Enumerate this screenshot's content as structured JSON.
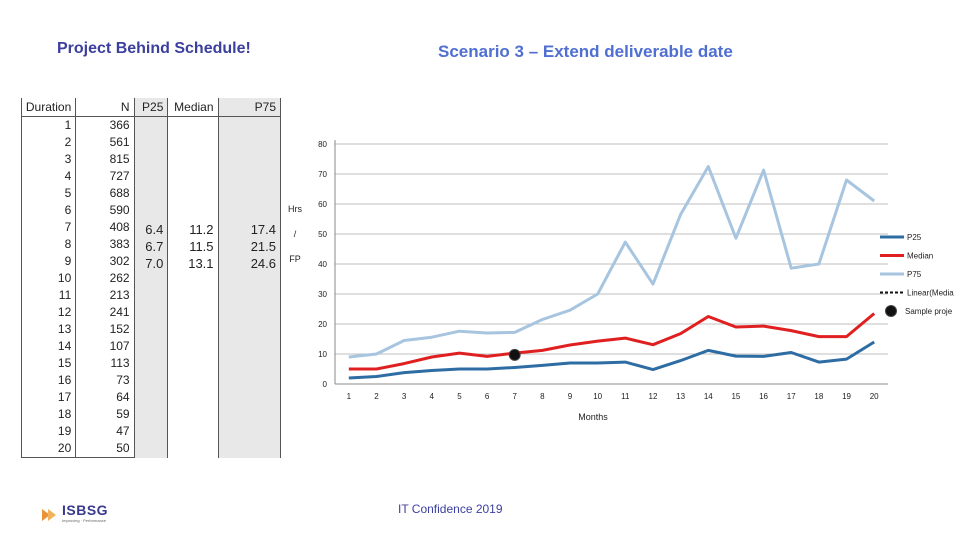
{
  "header": {
    "left_title": "Project Behind Schedule!",
    "right_title": "Scenario 3 – Extend deliverable date"
  },
  "table": {
    "headers": [
      "Duration",
      "N",
      "P25",
      "Median",
      "P75"
    ],
    "rows": [
      [
        "1",
        "366"
      ],
      [
        "2",
        "561"
      ],
      [
        "3",
        "815"
      ],
      [
        "4",
        "727"
      ],
      [
        "5",
        "688"
      ],
      [
        "6",
        "590"
      ],
      [
        "7",
        "408"
      ],
      [
        "8",
        "383"
      ],
      [
        "9",
        "302"
      ],
      [
        "10",
        "262"
      ],
      [
        "11",
        "213"
      ],
      [
        "12",
        "241"
      ],
      [
        "13",
        "152"
      ],
      [
        "14",
        "107"
      ],
      [
        "15",
        "113"
      ],
      [
        "16",
        "73"
      ],
      [
        "17",
        "64"
      ],
      [
        "18",
        "59"
      ],
      [
        "19",
        "47"
      ],
      [
        "20",
        "50"
      ]
    ],
    "p25": [
      "6.4",
      "6.7",
      "7.0"
    ],
    "median": [
      "11.2",
      "11.5",
      "13.1"
    ],
    "p75": [
      "17.4",
      "21.5",
      "24.6"
    ]
  },
  "chart_data": {
    "type": "line",
    "xlabel": "Months",
    "ylabel_lines": [
      "Hrs",
      "/",
      "FP"
    ],
    "ylim": [
      0,
      80
    ],
    "yticks": [
      0,
      10,
      20,
      30,
      40,
      50,
      60,
      70,
      80
    ],
    "x": [
      1,
      2,
      3,
      4,
      5,
      6,
      7,
      8,
      9,
      10,
      11,
      12,
      13,
      14,
      15,
      16,
      17,
      18,
      19,
      20
    ],
    "grid": true,
    "legend_position": "right",
    "series": [
      {
        "name": "P25",
        "color": "#2e6da4",
        "values": [
          2,
          2.5,
          3.8,
          4.5,
          5,
          5,
          5.5,
          6.2,
          7,
          7,
          7.3,
          4.8,
          7.8,
          11.2,
          9.3,
          9.2,
          10.5,
          7.3,
          8.3,
          14
        ]
      },
      {
        "name": "Median",
        "color": "#e02020",
        "values": [
          5,
          5,
          6.8,
          9,
          10.3,
          9.2,
          10.3,
          11.2,
          13,
          14.3,
          15.3,
          13.1,
          16.8,
          22.5,
          19,
          19.3,
          17.8,
          15.8,
          15.8,
          23.5
        ]
      },
      {
        "name": "P75",
        "color": "#a8c5e0",
        "values": [
          9,
          10,
          14.5,
          15.6,
          17.6,
          17,
          17.2,
          21.5,
          24.6,
          30,
          47.3,
          33.3,
          56.5,
          72.5,
          48.6,
          71.3,
          38.6,
          40,
          68,
          61
        ]
      }
    ],
    "legend_extra": [
      "Linear(Media",
      "Sample proje"
    ],
    "sample_point": {
      "x": 7,
      "y": 9.7
    }
  },
  "footer": {
    "text": "IT Confidence 2019",
    "logo_text": "ISBSG",
    "logo_sub": "Improving · Performance"
  }
}
